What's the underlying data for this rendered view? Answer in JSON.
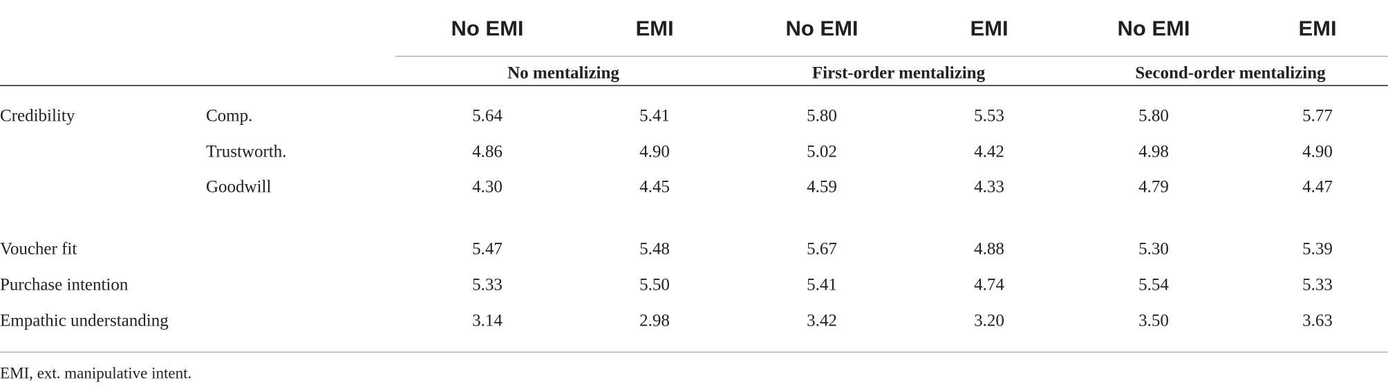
{
  "table": {
    "column_headers": [
      "No EMI",
      "EMI",
      "No EMI",
      "EMI",
      "No EMI",
      "EMI"
    ],
    "groups": [
      "No mentalizing",
      "First-order mentalizing",
      "Second-order mentalizing"
    ],
    "rows": [
      {
        "label": "Credibility",
        "sublabel": "Comp.",
        "values": [
          "5.64",
          "5.41",
          "5.80",
          "5.53",
          "5.80",
          "5.77"
        ]
      },
      {
        "sublabel": "Trustworth.",
        "values": [
          "4.86",
          "4.90",
          "5.02",
          "4.42",
          "4.98",
          "4.90"
        ]
      },
      {
        "sublabel": "Goodwill",
        "values": [
          "4.30",
          "4.45",
          "4.59",
          "4.33",
          "4.79",
          "4.47"
        ]
      },
      {
        "label": "Voucher fit",
        "values": [
          "5.47",
          "5.48",
          "5.67",
          "4.88",
          "5.30",
          "5.39"
        ]
      },
      {
        "label": "Purchase intention",
        "values": [
          "5.33",
          "5.50",
          "5.41",
          "4.74",
          "5.54",
          "5.33"
        ]
      },
      {
        "label": "Empathic understanding",
        "values": [
          "3.14",
          "2.98",
          "3.42",
          "3.20",
          "3.50",
          "3.63"
        ]
      }
    ],
    "footnote": "EMI, ext. manipulative intent."
  }
}
